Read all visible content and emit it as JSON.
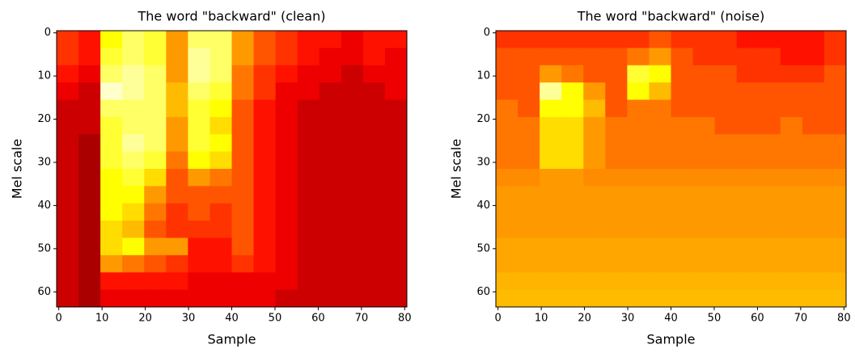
{
  "chart_data": [
    {
      "type": "heatmap",
      "title": "The word \"backward\" (clean)",
      "xlabel": "Sample",
      "ylabel": "Mel scale",
      "colormap": "hot",
      "xlim": [
        -0.5,
        80.5
      ],
      "ylim": [
        63.5,
        -0.5
      ],
      "xticks": [
        0,
        10,
        20,
        30,
        40,
        50,
        60,
        70,
        80
      ],
      "yticks": [
        0,
        10,
        20,
        30,
        40,
        50,
        60
      ],
      "z": [
        [
          0.45,
          0.4,
          0.75,
          0.85,
          0.8,
          0.6,
          0.85,
          0.85,
          0.6,
          0.5,
          0.45,
          0.4,
          0.4,
          0.35,
          0.4,
          0.4
        ],
        [
          0.45,
          0.4,
          0.8,
          0.85,
          0.8,
          0.6,
          0.9,
          0.85,
          0.6,
          0.5,
          0.45,
          0.4,
          0.35,
          0.35,
          0.4,
          0.35
        ],
        [
          0.4,
          0.35,
          0.85,
          0.9,
          0.85,
          0.6,
          0.9,
          0.85,
          0.55,
          0.45,
          0.4,
          0.35,
          0.35,
          0.3,
          0.35,
          0.35
        ],
        [
          0.35,
          0.3,
          0.95,
          0.9,
          0.85,
          0.65,
          0.85,
          0.8,
          0.55,
          0.45,
          0.35,
          0.35,
          0.3,
          0.3,
          0.3,
          0.35
        ],
        [
          0.3,
          0.3,
          0.85,
          0.85,
          0.85,
          0.65,
          0.8,
          0.75,
          0.5,
          0.4,
          0.35,
          0.3,
          0.3,
          0.3,
          0.3,
          0.3
        ],
        [
          0.3,
          0.3,
          0.8,
          0.85,
          0.85,
          0.6,
          0.8,
          0.7,
          0.5,
          0.4,
          0.35,
          0.3,
          0.3,
          0.3,
          0.3,
          0.3
        ],
        [
          0.3,
          0.25,
          0.8,
          0.9,
          0.85,
          0.6,
          0.8,
          0.75,
          0.5,
          0.4,
          0.35,
          0.3,
          0.3,
          0.3,
          0.3,
          0.3
        ],
        [
          0.3,
          0.25,
          0.8,
          0.85,
          0.8,
          0.55,
          0.75,
          0.7,
          0.5,
          0.4,
          0.35,
          0.3,
          0.3,
          0.3,
          0.3,
          0.3
        ],
        [
          0.3,
          0.25,
          0.75,
          0.8,
          0.7,
          0.5,
          0.6,
          0.55,
          0.5,
          0.4,
          0.35,
          0.3,
          0.3,
          0.3,
          0.3,
          0.3
        ],
        [
          0.3,
          0.25,
          0.75,
          0.75,
          0.6,
          0.5,
          0.5,
          0.5,
          0.5,
          0.4,
          0.35,
          0.3,
          0.3,
          0.3,
          0.3,
          0.3
        ],
        [
          0.3,
          0.25,
          0.75,
          0.7,
          0.55,
          0.45,
          0.5,
          0.45,
          0.5,
          0.4,
          0.35,
          0.3,
          0.3,
          0.3,
          0.3,
          0.3
        ],
        [
          0.3,
          0.25,
          0.7,
          0.65,
          0.5,
          0.45,
          0.45,
          0.45,
          0.5,
          0.4,
          0.35,
          0.3,
          0.3,
          0.3,
          0.3,
          0.3
        ],
        [
          0.3,
          0.25,
          0.7,
          0.75,
          0.6,
          0.6,
          0.4,
          0.4,
          0.5,
          0.4,
          0.35,
          0.3,
          0.3,
          0.3,
          0.3,
          0.3
        ],
        [
          0.3,
          0.25,
          0.6,
          0.55,
          0.5,
          0.45,
          0.4,
          0.4,
          0.45,
          0.4,
          0.35,
          0.3,
          0.3,
          0.3,
          0.3,
          0.3
        ],
        [
          0.3,
          0.25,
          0.4,
          0.4,
          0.4,
          0.4,
          0.35,
          0.35,
          0.35,
          0.35,
          0.35,
          0.3,
          0.3,
          0.3,
          0.3,
          0.3
        ],
        [
          0.3,
          0.25,
          0.35,
          0.35,
          0.35,
          0.35,
          0.35,
          0.35,
          0.35,
          0.35,
          0.3,
          0.3,
          0.3,
          0.3,
          0.3,
          0.3
        ]
      ]
    },
    {
      "type": "heatmap",
      "title": "The word \"backward\" (noise)",
      "xlabel": "Sample",
      "ylabel": "Mel scale",
      "colormap": "hot",
      "xlim": [
        -0.5,
        80.5
      ],
      "ylim": [
        63.5,
        -0.5
      ],
      "xticks": [
        0,
        10,
        20,
        30,
        40,
        50,
        60,
        70,
        80
      ],
      "yticks": [
        0,
        10,
        20,
        30,
        40,
        50,
        60
      ],
      "z": [
        [
          0.45,
          0.45,
          0.45,
          0.45,
          0.45,
          0.45,
          0.45,
          0.5,
          0.45,
          0.45,
          0.45,
          0.4,
          0.4,
          0.4,
          0.4,
          0.45
        ],
        [
          0.5,
          0.5,
          0.5,
          0.5,
          0.5,
          0.5,
          0.55,
          0.6,
          0.5,
          0.45,
          0.45,
          0.45,
          0.45,
          0.4,
          0.4,
          0.45
        ],
        [
          0.5,
          0.5,
          0.6,
          0.55,
          0.5,
          0.5,
          0.8,
          0.75,
          0.5,
          0.5,
          0.5,
          0.45,
          0.45,
          0.45,
          0.45,
          0.5
        ],
        [
          0.5,
          0.5,
          0.9,
          0.75,
          0.6,
          0.5,
          0.75,
          0.65,
          0.5,
          0.5,
          0.5,
          0.5,
          0.5,
          0.5,
          0.5,
          0.5
        ],
        [
          0.55,
          0.5,
          0.75,
          0.75,
          0.65,
          0.5,
          0.55,
          0.55,
          0.5,
          0.5,
          0.5,
          0.5,
          0.5,
          0.5,
          0.5,
          0.5
        ],
        [
          0.55,
          0.55,
          0.7,
          0.7,
          0.6,
          0.55,
          0.55,
          0.55,
          0.55,
          0.55,
          0.5,
          0.5,
          0.5,
          0.55,
          0.5,
          0.5
        ],
        [
          0.55,
          0.55,
          0.7,
          0.7,
          0.6,
          0.55,
          0.55,
          0.55,
          0.55,
          0.55,
          0.55,
          0.55,
          0.55,
          0.55,
          0.55,
          0.55
        ],
        [
          0.55,
          0.55,
          0.7,
          0.7,
          0.6,
          0.55,
          0.55,
          0.55,
          0.55,
          0.55,
          0.55,
          0.55,
          0.55,
          0.55,
          0.55,
          0.55
        ],
        [
          0.58,
          0.58,
          0.6,
          0.6,
          0.58,
          0.58,
          0.58,
          0.58,
          0.58,
          0.58,
          0.58,
          0.58,
          0.58,
          0.58,
          0.58,
          0.58
        ],
        [
          0.6,
          0.6,
          0.6,
          0.6,
          0.6,
          0.6,
          0.6,
          0.6,
          0.6,
          0.6,
          0.6,
          0.6,
          0.6,
          0.6,
          0.6,
          0.6
        ],
        [
          0.6,
          0.6,
          0.6,
          0.6,
          0.6,
          0.6,
          0.6,
          0.6,
          0.6,
          0.6,
          0.6,
          0.6,
          0.6,
          0.6,
          0.6,
          0.6
        ],
        [
          0.6,
          0.6,
          0.6,
          0.6,
          0.6,
          0.6,
          0.6,
          0.6,
          0.6,
          0.6,
          0.6,
          0.6,
          0.6,
          0.6,
          0.6,
          0.6
        ],
        [
          0.62,
          0.62,
          0.62,
          0.62,
          0.62,
          0.62,
          0.62,
          0.62,
          0.62,
          0.62,
          0.62,
          0.62,
          0.62,
          0.62,
          0.62,
          0.62
        ],
        [
          0.62,
          0.62,
          0.62,
          0.62,
          0.62,
          0.62,
          0.62,
          0.62,
          0.62,
          0.62,
          0.62,
          0.62,
          0.62,
          0.62,
          0.62,
          0.62
        ],
        [
          0.64,
          0.64,
          0.64,
          0.64,
          0.64,
          0.64,
          0.64,
          0.64,
          0.64,
          0.64,
          0.64,
          0.64,
          0.64,
          0.64,
          0.64,
          0.64
        ],
        [
          0.65,
          0.65,
          0.65,
          0.65,
          0.65,
          0.65,
          0.65,
          0.65,
          0.65,
          0.65,
          0.65,
          0.65,
          0.65,
          0.65,
          0.65,
          0.65
        ]
      ]
    }
  ]
}
